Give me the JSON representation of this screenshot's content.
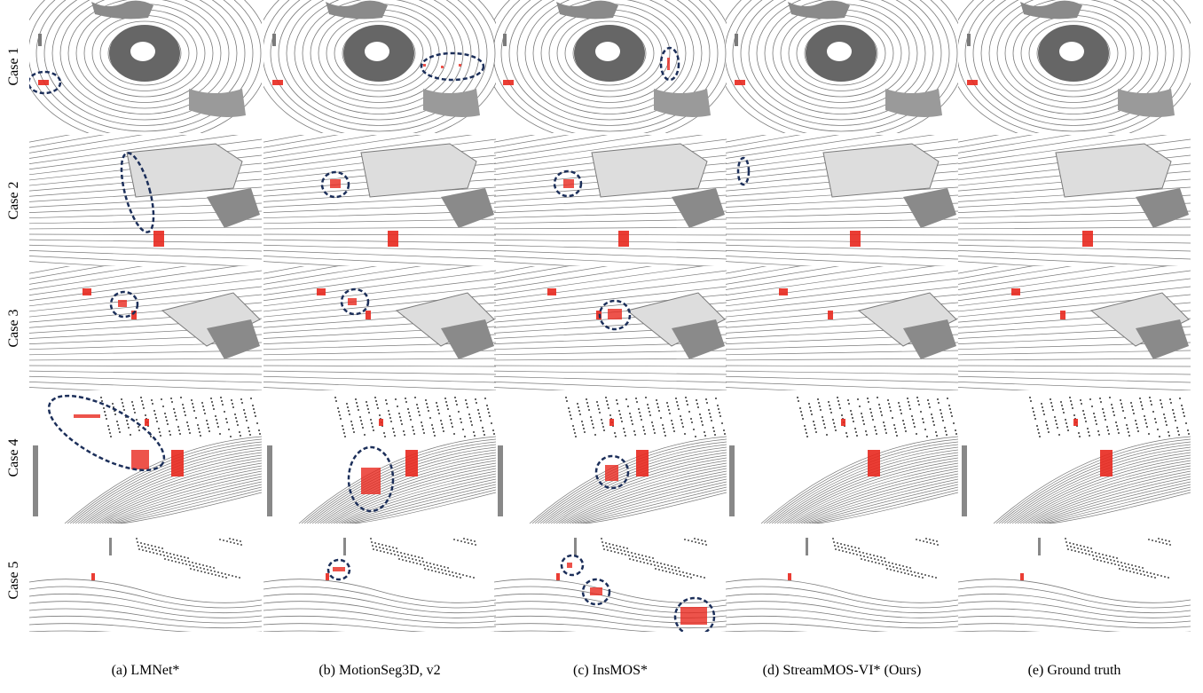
{
  "rows": [
    {
      "label": "Case 1"
    },
    {
      "label": "Case 2"
    },
    {
      "label": "Case 3"
    },
    {
      "label": "Case 4"
    },
    {
      "label": "Case 5"
    }
  ],
  "columns": [
    {
      "caption": "(a) LMNet*"
    },
    {
      "caption": "(b) MotionSeg3D, v2"
    },
    {
      "caption": "(c) InsMOS*"
    },
    {
      "caption": "(d) StreamMOS-VI* (Ours)"
    },
    {
      "caption": "(e) Ground truth"
    }
  ]
}
